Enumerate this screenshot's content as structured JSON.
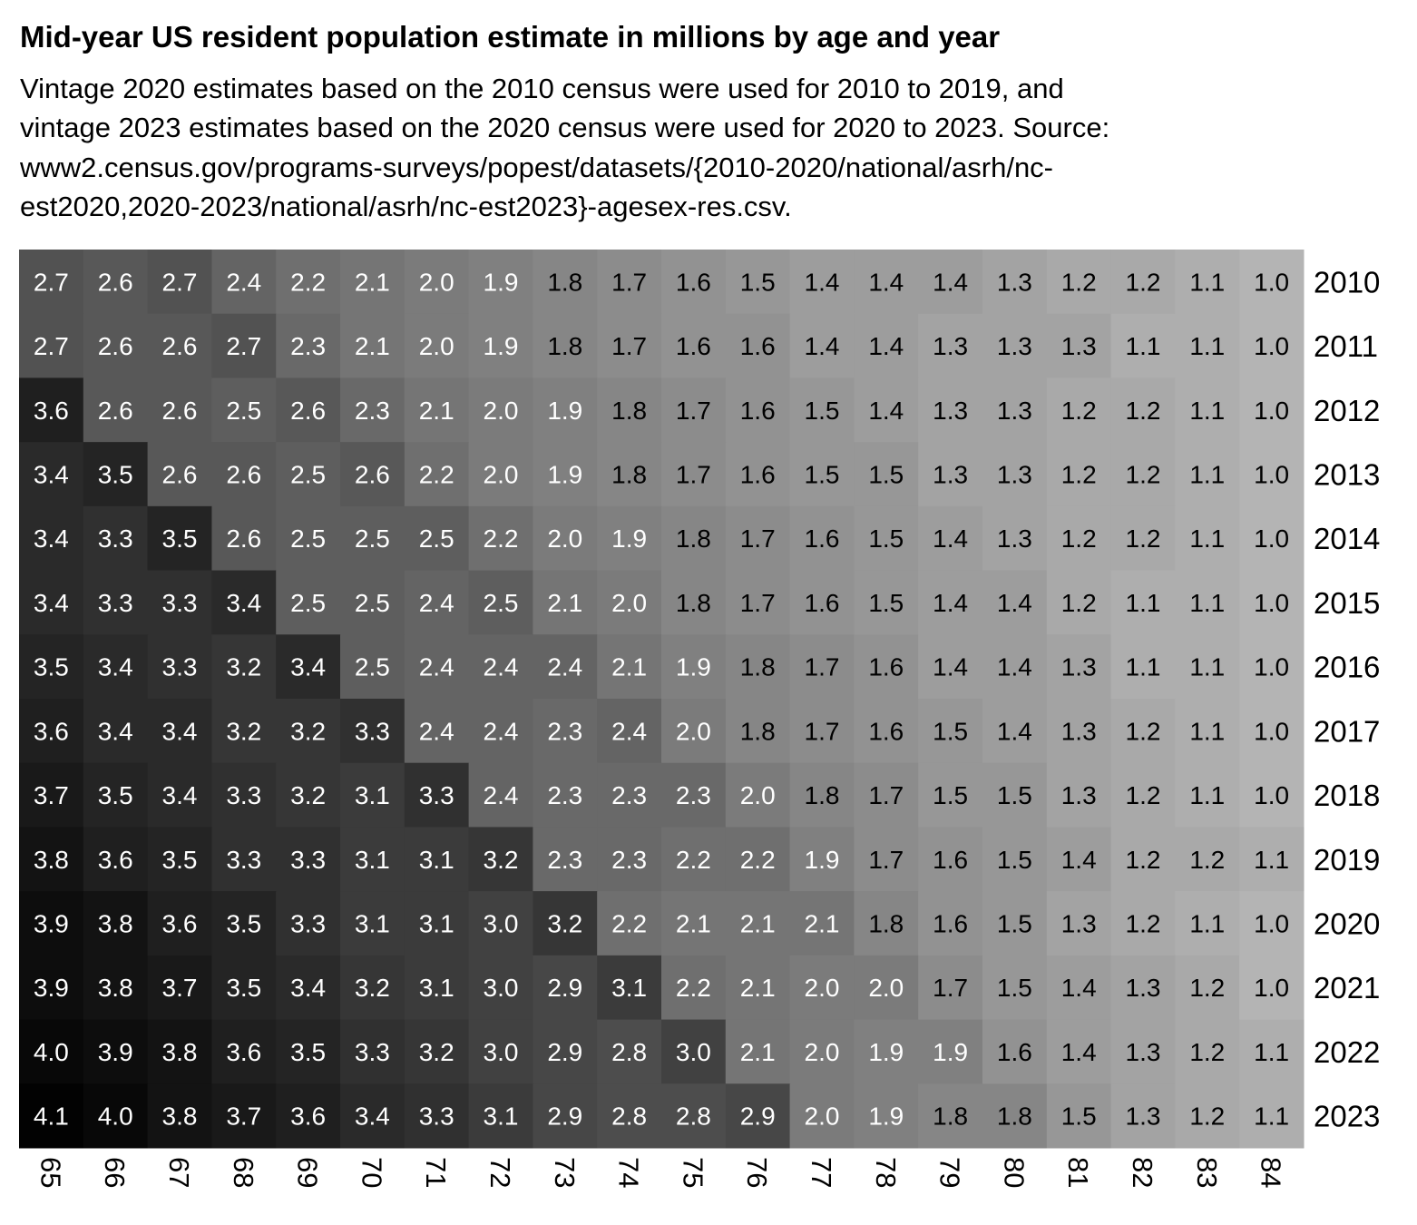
{
  "chart_data": {
    "type": "heatmap",
    "title": "Mid-year US resident population estimate in millions by age and year",
    "subtitle_lines": [
      "Vintage 2020 estimates based on the 2010 census were used for 2010 to 2019, and",
      "vintage 2023 estimates based on the 2020 census were used for 2020 to 2023. Source:",
      "www2.census.gov/programs-surveys/popest/datasets/{2010-2020/national/asrh/nc-",
      "est2020,2020-2023/national/asrh/nc-est2023}-agesex-res.csv."
    ],
    "xlabel": "",
    "ylabel": "",
    "x": [
      "65",
      "66",
      "67",
      "68",
      "69",
      "70",
      "71",
      "72",
      "73",
      "74",
      "75",
      "76",
      "77",
      "78",
      "79",
      "80",
      "81",
      "82",
      "83",
      "84"
    ],
    "y": [
      "2010",
      "2011",
      "2012",
      "2013",
      "2014",
      "2015",
      "2016",
      "2017",
      "2018",
      "2019",
      "2020",
      "2021",
      "2022",
      "2023"
    ],
    "values": [
      [
        2.7,
        2.6,
        2.7,
        2.4,
        2.2,
        2.1,
        2.0,
        1.9,
        1.8,
        1.7,
        1.6,
        1.5,
        1.4,
        1.4,
        1.4,
        1.3,
        1.2,
        1.2,
        1.1,
        1.0
      ],
      [
        2.7,
        2.6,
        2.6,
        2.7,
        2.3,
        2.1,
        2.0,
        1.9,
        1.8,
        1.7,
        1.6,
        1.6,
        1.4,
        1.4,
        1.3,
        1.3,
        1.3,
        1.1,
        1.1,
        1.0
      ],
      [
        3.6,
        2.6,
        2.6,
        2.5,
        2.6,
        2.3,
        2.1,
        2.0,
        1.9,
        1.8,
        1.7,
        1.6,
        1.5,
        1.4,
        1.3,
        1.3,
        1.2,
        1.2,
        1.1,
        1.0
      ],
      [
        3.4,
        3.5,
        2.6,
        2.6,
        2.5,
        2.6,
        2.2,
        2.0,
        1.9,
        1.8,
        1.7,
        1.6,
        1.5,
        1.5,
        1.3,
        1.3,
        1.2,
        1.2,
        1.1,
        1.0
      ],
      [
        3.4,
        3.3,
        3.5,
        2.6,
        2.5,
        2.5,
        2.5,
        2.2,
        2.0,
        1.9,
        1.8,
        1.7,
        1.6,
        1.5,
        1.4,
        1.3,
        1.2,
        1.2,
        1.1,
        1.0
      ],
      [
        3.4,
        3.3,
        3.3,
        3.4,
        2.5,
        2.5,
        2.4,
        2.5,
        2.1,
        2.0,
        1.8,
        1.7,
        1.6,
        1.5,
        1.4,
        1.4,
        1.2,
        1.1,
        1.1,
        1.0
      ],
      [
        3.5,
        3.4,
        3.3,
        3.2,
        3.4,
        2.5,
        2.4,
        2.4,
        2.4,
        2.1,
        1.9,
        1.8,
        1.7,
        1.6,
        1.4,
        1.4,
        1.3,
        1.1,
        1.1,
        1.0
      ],
      [
        3.6,
        3.4,
        3.4,
        3.2,
        3.2,
        3.3,
        2.4,
        2.4,
        2.3,
        2.4,
        2.0,
        1.8,
        1.7,
        1.6,
        1.5,
        1.4,
        1.3,
        1.2,
        1.1,
        1.0
      ],
      [
        3.7,
        3.5,
        3.4,
        3.3,
        3.2,
        3.1,
        3.3,
        2.4,
        2.3,
        2.3,
        2.3,
        2.0,
        1.8,
        1.7,
        1.5,
        1.5,
        1.3,
        1.2,
        1.1,
        1.0
      ],
      [
        3.8,
        3.6,
        3.5,
        3.3,
        3.3,
        3.1,
        3.1,
        3.2,
        2.3,
        2.3,
        2.2,
        2.2,
        1.9,
        1.7,
        1.6,
        1.5,
        1.4,
        1.2,
        1.2,
        1.1
      ],
      [
        3.9,
        3.8,
        3.6,
        3.5,
        3.3,
        3.1,
        3.1,
        3.0,
        3.2,
        2.2,
        2.1,
        2.1,
        2.1,
        1.8,
        1.6,
        1.5,
        1.3,
        1.2,
        1.1,
        1.0
      ],
      [
        3.9,
        3.8,
        3.7,
        3.5,
        3.4,
        3.2,
        3.1,
        3.0,
        2.9,
        3.1,
        2.2,
        2.1,
        2.0,
        2.0,
        1.7,
        1.5,
        1.4,
        1.3,
        1.2,
        1.0
      ],
      [
        4.0,
        3.9,
        3.8,
        3.6,
        3.5,
        3.3,
        3.2,
        3.0,
        2.9,
        2.8,
        3.0,
        2.1,
        2.0,
        1.9,
        1.9,
        1.6,
        1.4,
        1.3,
        1.2,
        1.1
      ],
      [
        4.1,
        4.0,
        3.8,
        3.7,
        3.6,
        3.4,
        3.3,
        3.1,
        2.9,
        2.8,
        2.8,
        2.9,
        2.0,
        1.9,
        1.8,
        1.8,
        1.5,
        1.3,
        1.2,
        1.1
      ]
    ],
    "color_scale": {
      "low": "#b4b4b4",
      "high": "#000000"
    },
    "grid": false,
    "legend": "none"
  }
}
